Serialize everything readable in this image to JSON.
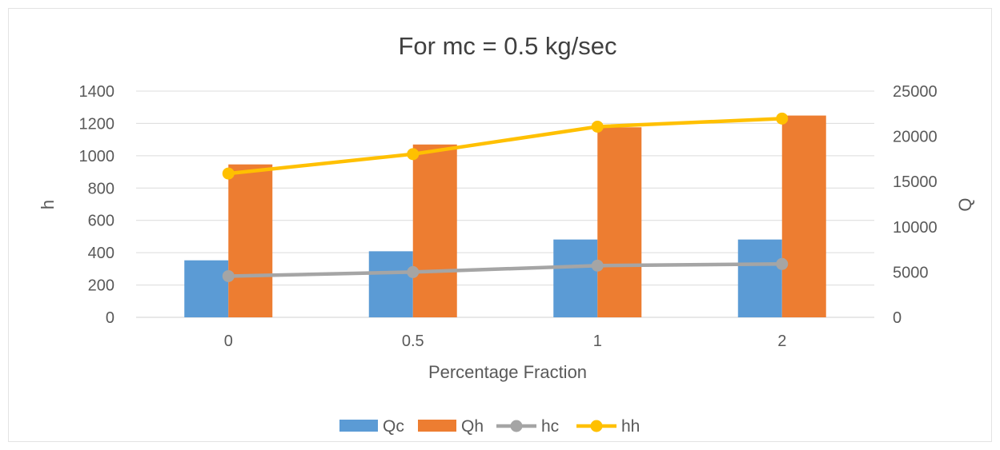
{
  "chart_data": {
    "type": "bar",
    "title": "For mc = 0.5 kg/sec",
    "xlabel": "Percentage Fraction",
    "ylabel_left": "h",
    "ylabel_right": "Q",
    "categories": [
      "0",
      "0.5",
      "1",
      "2"
    ],
    "ylim_left": [
      0,
      1400
    ],
    "yticks_left": [
      "0",
      "200",
      "400",
      "600",
      "800",
      "1000",
      "1200",
      "1400"
    ],
    "ylim_right": [
      0,
      25000
    ],
    "yticks_right": [
      "0",
      "5000",
      "10000",
      "15000",
      "20000",
      "25000"
    ],
    "grid": true,
    "legend_position": "bottom",
    "series": [
      {
        "name": "Qc",
        "kind": "bar",
        "axis": "right",
        "color": "#5B9BD5",
        "values": [
          6300,
          7300,
          8600,
          8600
        ]
      },
      {
        "name": "Qh",
        "kind": "bar",
        "axis": "right",
        "color": "#ED7D31",
        "values": [
          16900,
          19100,
          21000,
          22300
        ]
      },
      {
        "name": "hc",
        "kind": "line",
        "axis": "left",
        "color": "#A5A5A5",
        "values": [
          255,
          280,
          320,
          330
        ]
      },
      {
        "name": "hh",
        "kind": "line",
        "axis": "left",
        "color": "#FFC000",
        "values": [
          890,
          1010,
          1180,
          1230
        ]
      }
    ]
  }
}
